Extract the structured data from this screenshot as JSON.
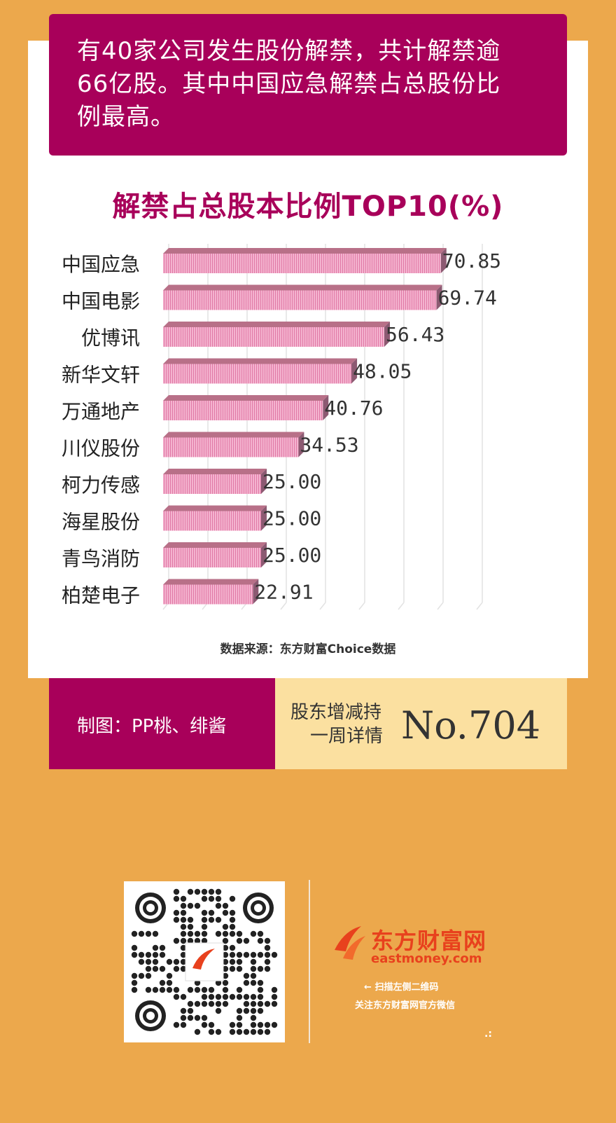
{
  "banner": {
    "line1": "有40家公司发生股份解禁，共计解禁逾",
    "line2": "66亿股。其中中国应急解禁占总股份比",
    "line3": "例最高。"
  },
  "chart_data": {
    "type": "bar",
    "orientation": "horizontal",
    "title": "解禁占总股本比例TOP10(%)",
    "categories": [
      "中国应急",
      "中国电影",
      "优博讯",
      "新华文轩",
      "万通地产",
      "川仪股份",
      "柯力传感",
      "海星股份",
      "青鸟消防",
      "柏楚电子"
    ],
    "values": [
      70.85,
      69.74,
      56.43,
      48.05,
      40.76,
      34.53,
      25.0,
      25.0,
      25.0,
      22.91
    ],
    "value_labels": [
      "70.85",
      "69.74",
      "56.43",
      "48.05",
      "40.76",
      "34.53",
      "25.00",
      "25.00",
      "25.00",
      "22.91"
    ],
    "xlim": [
      0,
      80
    ],
    "grid": true,
    "colors": {
      "bar": "#f09ec2",
      "bar_top": "#b87088",
      "bar_side": "#8c5a72"
    }
  },
  "source": "数据来源：东方财富Choice数据",
  "footer": {
    "credit": "制图：PP桃、绯酱",
    "series_line1": "股东增减持",
    "series_line2": "一周详情",
    "issue": "No.704"
  },
  "brand": {
    "name_cn": "东方财富网",
    "name_en": "eastmoney.com",
    "hint1": "扫描左侧二维码",
    "hint2": "关注东方财富网官方微信",
    "arrow": "←",
    "dots": ".:"
  },
  "theme": {
    "background": "#eca84c",
    "accent": "#a8005a",
    "cream": "#fbe0a0"
  }
}
